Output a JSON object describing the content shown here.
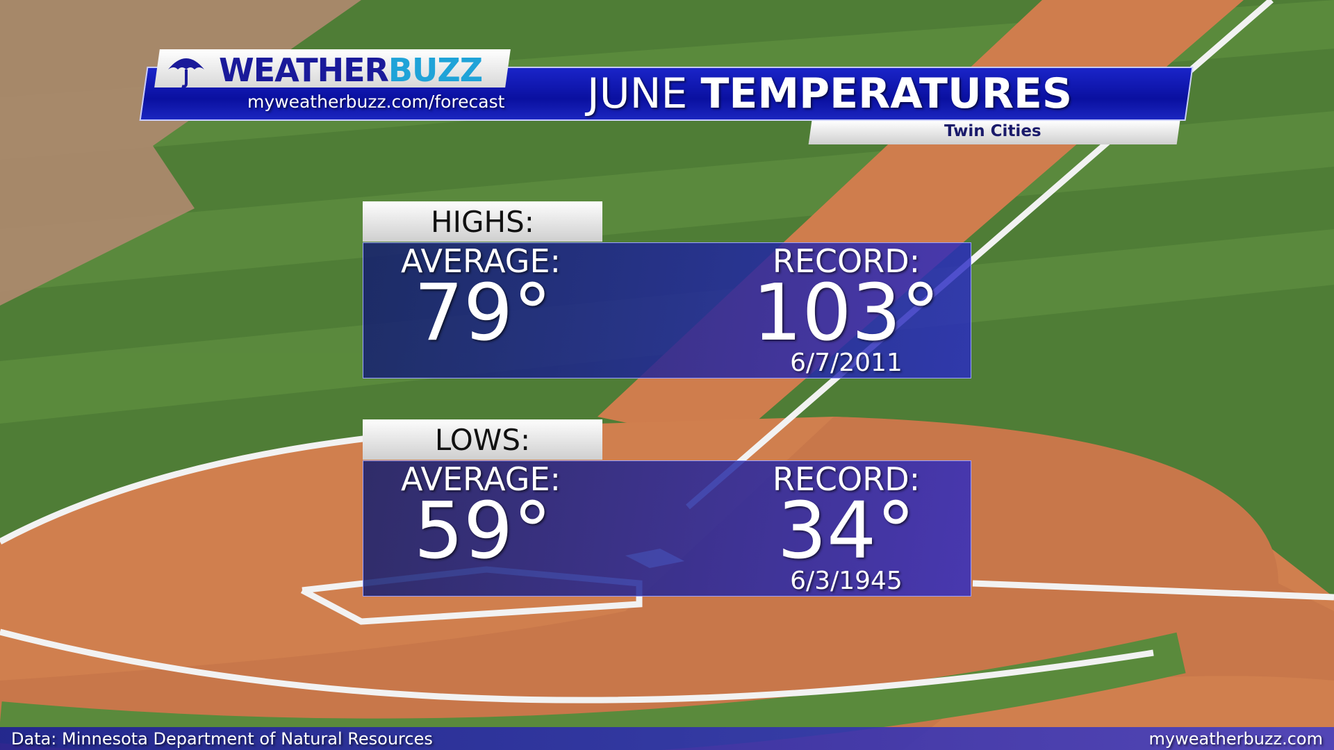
{
  "header": {
    "brand_a": "WEATHER",
    "brand_b": "BUZZ",
    "url": "myweatherbuzz.com/forecast",
    "title_a": "JUNE",
    "title_b": "TEMPERATURES",
    "subtitle": "Twin Cities"
  },
  "panels": [
    {
      "label": "HIGHS:",
      "average_label": "AVERAGE:",
      "average": "79°",
      "record_label": "RECORD:",
      "record": "103°",
      "record_date": "6/7/2011"
    },
    {
      "label": "LOWS:",
      "average_label": "AVERAGE:",
      "average": "59°",
      "record_label": "RECORD:",
      "record": "34°",
      "record_date": "6/3/1945"
    }
  ],
  "footer": {
    "source": "Data: Minnesota Department of Natural Resources",
    "site": "myweatherbuzz.com"
  }
}
